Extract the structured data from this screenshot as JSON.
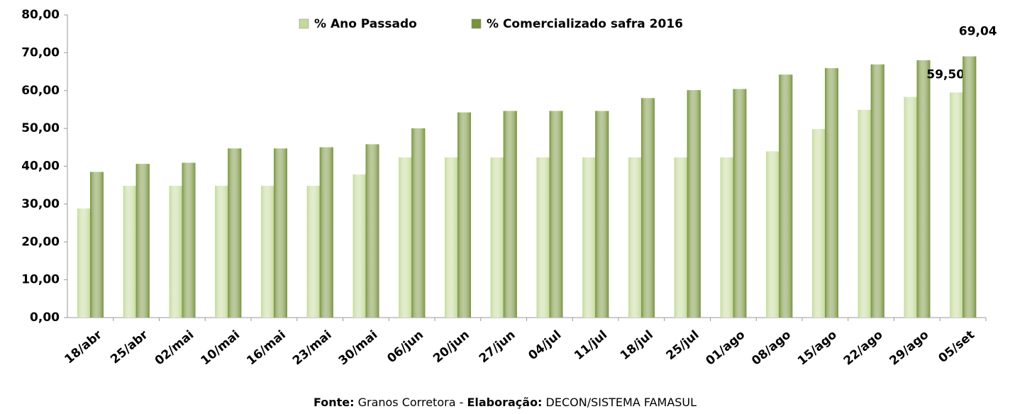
{
  "chart_data": {
    "type": "bar",
    "categories": [
      "18/abr",
      "25/abr",
      "02/mai",
      "10/mai",
      "16/mai",
      "23/mai",
      "30/mai",
      "06/jun",
      "20/jun",
      "27/jun",
      "04/jul",
      "11/jul",
      "18/jul",
      "25/jul",
      "01/ago",
      "08/ago",
      "15/ago",
      "22/ago",
      "29/ago",
      "05/set"
    ],
    "series": [
      {
        "name": "% Ano Passado",
        "color": "#c4d99a",
        "values": [
          28.8,
          34.8,
          34.8,
          34.8,
          34.8,
          34.8,
          37.8,
          42.3,
          42.3,
          42.3,
          42.3,
          42.3,
          42.3,
          42.3,
          42.3,
          43.9,
          49.8,
          54.9,
          58.3,
          59.5
        ],
        "value_labels": [
          null,
          null,
          null,
          null,
          null,
          null,
          null,
          null,
          null,
          null,
          null,
          null,
          null,
          null,
          null,
          null,
          null,
          null,
          null,
          "59,50"
        ]
      },
      {
        "name": "% Comercializado safra 2016",
        "color": "#77933c",
        "values": [
          38.5,
          40.6,
          40.9,
          44.7,
          44.7,
          45.0,
          45.8,
          50.0,
          54.2,
          54.6,
          54.6,
          54.6,
          58.0,
          60.1,
          60.4,
          64.2,
          65.9,
          66.9,
          68.0,
          69.04
        ],
        "value_labels": [
          null,
          null,
          null,
          null,
          null,
          null,
          null,
          null,
          null,
          null,
          null,
          null,
          null,
          null,
          null,
          null,
          null,
          null,
          null,
          "69,04"
        ]
      }
    ],
    "ylim": [
      0,
      80
    ],
    "yticks": [
      {
        "value": 0,
        "label": "0,00"
      },
      {
        "value": 10,
        "label": "10,00"
      },
      {
        "value": 20,
        "label": "20,00"
      },
      {
        "value": 30,
        "label": "30,00"
      },
      {
        "value": 40,
        "label": "40,00"
      },
      {
        "value": 50,
        "label": "50,00"
      },
      {
        "value": 60,
        "label": "60,00"
      },
      {
        "value": 70,
        "label": "70,00"
      },
      {
        "value": 80,
        "label": "80,00"
      }
    ],
    "source": [
      {
        "text": "Fonte:",
        "bold": true
      },
      {
        "text": " Granos Corretora - ",
        "bold": false
      },
      {
        "text": "Elaboração:",
        "bold": true
      },
      {
        "text": " DECON/SISTEMA FAMASUL",
        "bold": false
      }
    ]
  }
}
